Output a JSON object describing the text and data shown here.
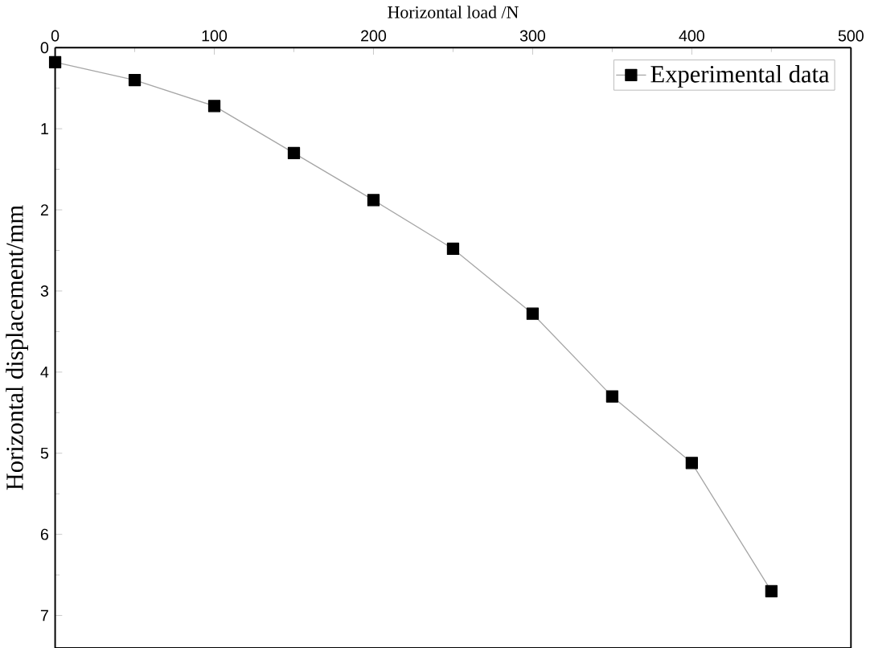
{
  "chart_data": {
    "type": "line",
    "xlabel": "Horizontal load /N",
    "ylabel": "Horizontal displacement/mm",
    "x": [
      0,
      50,
      100,
      150,
      200,
      250,
      300,
      350,
      400,
      450
    ],
    "series": [
      {
        "name": "Experimental data",
        "color": "#000000",
        "values": [
          0.18,
          0.4,
          0.72,
          1.3,
          1.88,
          2.48,
          3.28,
          4.3,
          5.12,
          6.7
        ]
      }
    ],
    "xlim": [
      0,
      500
    ],
    "xticks": [
      0,
      100,
      200,
      300,
      400,
      500
    ],
    "ylim": [
      7.4,
      0
    ],
    "yticks": [
      0,
      1,
      2,
      3,
      4,
      5,
      6,
      7
    ],
    "legend": "top right",
    "marker": "square",
    "line_style": "solid",
    "grid": false
  }
}
